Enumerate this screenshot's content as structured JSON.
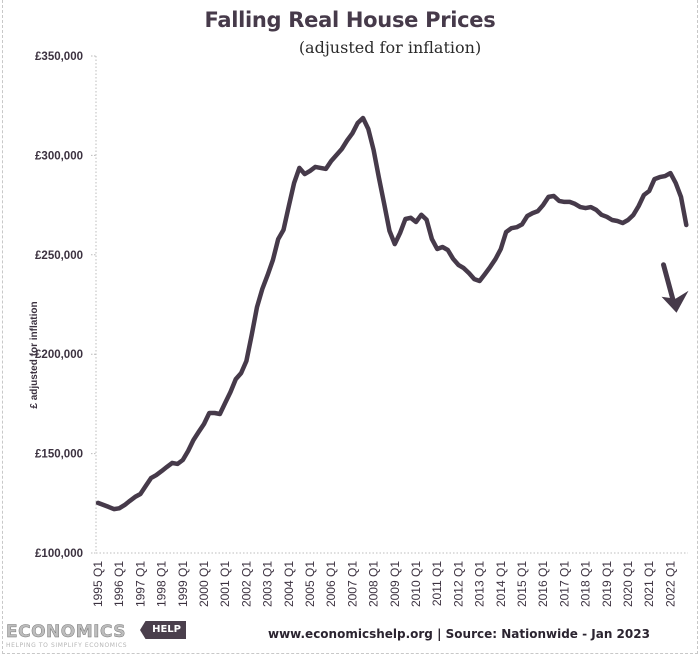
{
  "footer": {
    "logo_text": "ECONOMICS",
    "logo_tag": "HELP",
    "tagline": "HELPING TO SIMPLIFY ECONOMICS",
    "source": "www.economicshelp.org | Source: Nationwide - Jan 2023"
  },
  "colors": {
    "line": "#463a4a",
    "text": "#3c3240",
    "axis": "#bcbcbc"
  },
  "chart_data": {
    "type": "line",
    "title": "Falling Real House Prices",
    "subtitle": "(adjusted for inflation)",
    "xlabel": "",
    "ylabel": "£ adjusted for inflation",
    "ylim": [
      100000,
      350000
    ],
    "yticks": [
      100000,
      150000,
      200000,
      250000,
      300000,
      350000
    ],
    "ytick_labels": [
      "£100,000",
      "£150,000",
      "£200,000",
      "£250,000",
      "£300,000",
      "£350,000"
    ],
    "xtick_labels": [
      "1995 Q1",
      "1996 Q1",
      "1997 Q1",
      "1998 Q1",
      "1999 Q1",
      "2000 Q1",
      "2001 Q1",
      "2002 Q1",
      "2003 Q1",
      "2004 Q1",
      "2005 Q1",
      "2006 Q1",
      "2007 Q1",
      "2008 Q1",
      "2009 Q1",
      "2010 Q1",
      "2011 Q1",
      "2012 Q1",
      "2013 Q1",
      "2014 Q1",
      "2015 Q1",
      "2016 Q1",
      "2017 Q1",
      "2018 Q1",
      "2019 Q1",
      "2020 Q1",
      "2021 Q1",
      "2022 Q1"
    ],
    "grid": false,
    "annotations": [
      {
        "type": "arrow",
        "meaning": "downward trend",
        "near": "2022 Q3"
      }
    ],
    "series": [
      {
        "name": "Real house price",
        "x_start": "1995 Q1",
        "frequency": "quarterly",
        "values": [
          125200,
          124200,
          123200,
          122100,
          122500,
          124100,
          126200,
          128200,
          129700,
          133700,
          137700,
          139200,
          141200,
          143300,
          145300,
          144800,
          146800,
          151300,
          156800,
          160900,
          164900,
          170400,
          170400,
          169900,
          175500,
          181000,
          187500,
          190500,
          196600,
          209700,
          223700,
          232800,
          239800,
          247400,
          257900,
          262500,
          274500,
          286100,
          293700,
          290600,
          292200,
          294200,
          293700,
          293200,
          297200,
          300200,
          303200,
          307500,
          311100,
          316300,
          318800,
          313300,
          302700,
          288800,
          275600,
          262000,
          255400,
          261000,
          268000,
          268600,
          266500,
          270100,
          267600,
          257900,
          252900,
          253900,
          252400,
          248000,
          244900,
          243300,
          240800,
          237800,
          236800,
          240300,
          243900,
          247900,
          252900,
          261400,
          263400,
          263900,
          265300,
          269500,
          271000,
          272000,
          275100,
          279100,
          279600,
          277100,
          276600,
          276600,
          275600,
          274000,
          273500,
          274000,
          272600,
          270100,
          269100,
          267500,
          267000,
          266000,
          267500,
          270000,
          274500,
          280100,
          282100,
          288100,
          289100,
          289600,
          291100,
          286100,
          279100,
          265000
        ]
      }
    ]
  }
}
